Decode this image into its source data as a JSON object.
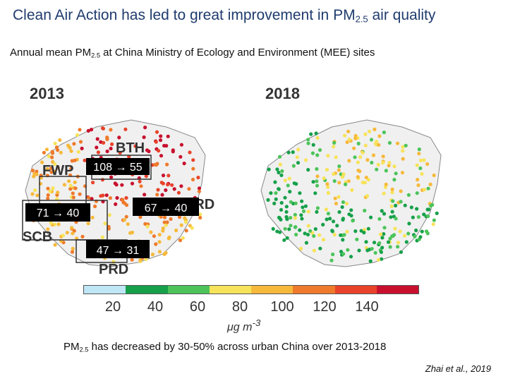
{
  "title": {
    "text": "Clean Air Action has led to great improvement in PM",
    "sub": "2.5",
    "tail": " air quality"
  },
  "subtitle": {
    "text": "Annual mean PM",
    "sub": "2.5",
    "tail": " at China Ministry of Ecology and Environment (MEE) sites"
  },
  "maps": [
    {
      "year": "2013"
    },
    {
      "year": "2018"
    }
  ],
  "regions": [
    {
      "label": "BTH"
    },
    {
      "label": "FWP"
    },
    {
      "label": "SCB"
    },
    {
      "label": "PRD"
    },
    {
      "label": "YRD"
    }
  ],
  "annotations": [
    {
      "text": "108 → 55"
    },
    {
      "text": "71 → 40"
    },
    {
      "text": "67 → 40"
    },
    {
      "text": "47 → 31"
    }
  ],
  "colorbar": {
    "colors": [
      "#bfe6f5",
      "#16a04a",
      "#4cc45a",
      "#f7e35a",
      "#f6b93b",
      "#ef7a2b",
      "#e8432a",
      "#c8102e"
    ],
    "ticks": [
      "20",
      "40",
      "60",
      "80",
      "100",
      "120",
      "140"
    ],
    "unit": "μg m",
    "unit_sup": "-3"
  },
  "caption": {
    "text": "PM",
    "sub": "2.5",
    "tail": " has decreased by 30-50% across urban China over 2013-2018"
  },
  "citation": "Zhai et al., 2019"
}
